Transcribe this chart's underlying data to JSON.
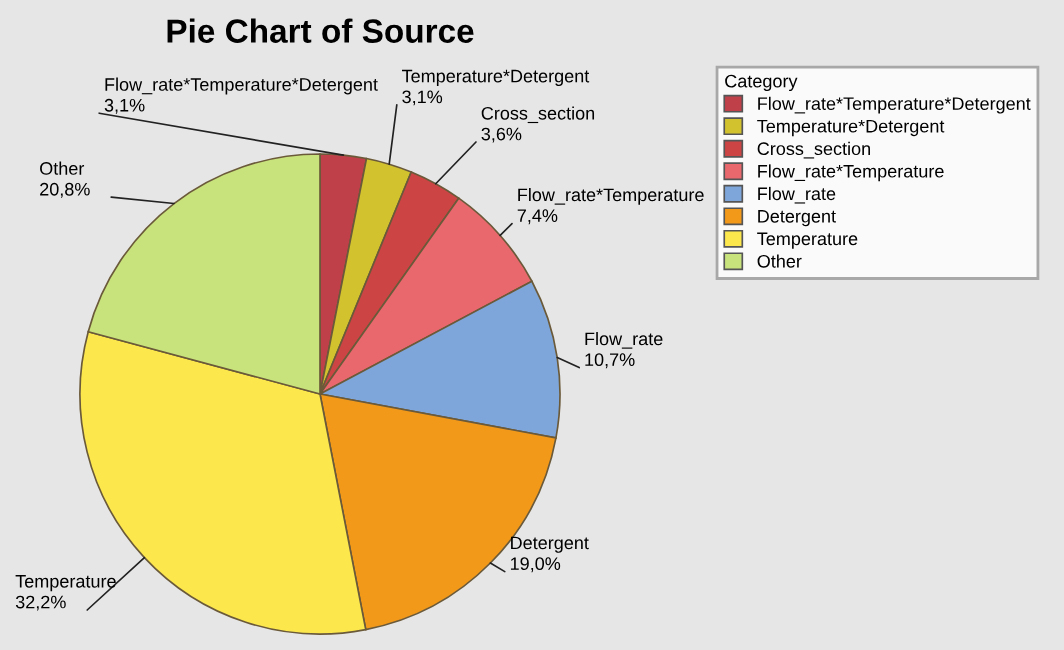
{
  "chart_data": {
    "type": "pie",
    "title": "Pie Chart of Source",
    "legend_title": "Category",
    "legend": "right",
    "categories": [
      "Flow_rate*Temperature*Detergent",
      "Temperature*Detergent",
      "Cross_section",
      "Flow_rate*Temperature",
      "Flow_rate",
      "Detergent",
      "Temperature",
      "Other"
    ],
    "values": [
      3.1,
      3.1,
      3.6,
      7.4,
      10.7,
      19.0,
      32.2,
      20.8
    ],
    "value_labels": [
      "3,1%",
      "3,1%",
      "3,6%",
      "7,4%",
      "10,7%",
      "19,0%",
      "32,2%",
      "20,8%"
    ],
    "colors": [
      "#c0404a",
      "#d2c22e",
      "#cc4444",
      "#e8686e",
      "#7ea6da",
      "#f3991a",
      "#fce84c",
      "#c8e27c"
    ]
  }
}
